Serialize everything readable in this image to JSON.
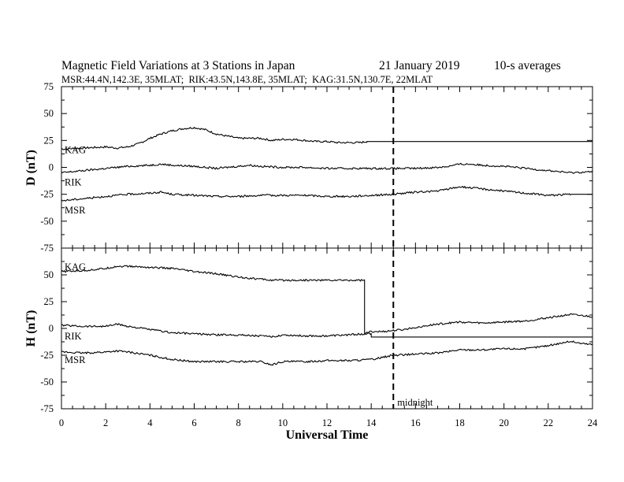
{
  "header": {
    "title": "Magnetic Field Variations at 3 Stations in Japan",
    "date": "21 January 2019",
    "averaging": "10-s averages",
    "stations": "MSR:44.4N,142.3E, 35MLAT;  RIK:43.5N,143.8E, 35MLAT;  KAG:31.5N,130.7E, 22MLAT"
  },
  "chart_data": [
    {
      "type": "line",
      "panel": "D",
      "ylabel": "D (nT)",
      "xlabel": "",
      "xlim": [
        0,
        24
      ],
      "ylim": [
        -75,
        75
      ],
      "xticks": [
        0,
        2,
        4,
        6,
        8,
        10,
        12,
        14,
        16,
        18,
        20,
        22,
        24
      ],
      "yticks": [
        -75,
        -50,
        -25,
        0,
        25,
        50,
        75
      ],
      "series": [
        {
          "name": "KAG",
          "x": [
            0,
            1,
            2,
            2.5,
            3,
            3.5,
            4,
            4.5,
            5,
            5.5,
            6,
            6.5,
            7,
            7.5,
            8,
            8.5,
            9,
            9.5,
            10,
            10.5,
            11,
            11.5,
            12,
            12.5,
            13,
            13.5,
            13.8,
            13.8,
            24
          ],
          "y": [
            17,
            18,
            19,
            18,
            19,
            22,
            27,
            31,
            34,
            36,
            37,
            35,
            31,
            29,
            27,
            27,
            27,
            25,
            26,
            26,
            25,
            24,
            24,
            23,
            23,
            23,
            24,
            24,
            24
          ]
        },
        {
          "name": "RIK",
          "x": [
            0,
            1,
            2,
            3,
            4,
            4.5,
            5,
            6,
            7,
            8,
            8.5,
            9,
            10,
            11,
            12,
            13,
            14,
            15,
            16,
            17,
            17.5,
            18,
            18.5,
            19,
            20,
            21,
            22,
            23,
            24
          ],
          "y": [
            -5,
            -3,
            -1,
            1,
            2,
            3,
            2,
            1,
            -1,
            1,
            2,
            1,
            0,
            0,
            -1,
            -1,
            -1,
            -1,
            -1,
            0,
            1,
            3,
            3,
            2,
            1,
            -1,
            -3,
            -5,
            -4
          ]
        },
        {
          "name": "MSR",
          "x": [
            0,
            1,
            2,
            3,
            4,
            4.5,
            5,
            6,
            7,
            8,
            9,
            10,
            11,
            12,
            13,
            14,
            15,
            16,
            17,
            17.5,
            18,
            18.5,
            19,
            20,
            21,
            22,
            23,
            24
          ],
          "y": [
            -31,
            -29,
            -27,
            -25,
            -24,
            -23,
            -25,
            -26,
            -27,
            -27,
            -26,
            -26,
            -26,
            -27,
            -27,
            -26,
            -25,
            -23,
            -22,
            -20,
            -18,
            -19,
            -20,
            -22,
            -24,
            -26,
            -25,
            -25
          ]
        }
      ],
      "annotations": []
    },
    {
      "type": "line",
      "panel": "H",
      "ylabel": "H (nT)",
      "xlabel": "Universal Time",
      "xlim": [
        0,
        24
      ],
      "ylim": [
        -75,
        75
      ],
      "xticks": [
        0,
        2,
        4,
        6,
        8,
        10,
        12,
        14,
        16,
        18,
        20,
        22,
        24
      ],
      "yticks": [
        -75,
        -50,
        -25,
        0,
        25,
        50,
        75
      ],
      "series": [
        {
          "name": "KAG",
          "x": [
            0,
            1,
            2,
            2.5,
            3,
            4,
            5,
            6,
            7,
            8,
            9,
            9.5,
            10,
            11,
            12,
            13,
            13.7,
            13.7,
            14,
            14,
            24
          ],
          "y": [
            53,
            54,
            56,
            58,
            58,
            57,
            56,
            53,
            51,
            48,
            46,
            45,
            45,
            45,
            45,
            45,
            45,
            -5,
            -5,
            -8,
            -8
          ]
        },
        {
          "name": "RIK",
          "x": [
            0,
            1,
            2,
            2.5,
            3,
            4,
            5,
            6,
            7,
            8,
            9,
            9.5,
            10,
            11,
            12,
            13,
            13.7,
            14,
            14.5,
            15,
            15.5,
            16,
            17,
            18,
            19,
            20,
            21,
            22,
            23,
            23.5,
            24
          ],
          "y": [
            3,
            2,
            2,
            4,
            2,
            -1,
            -4,
            -5,
            -6,
            -6,
            -7,
            -8,
            -6,
            -7,
            -7,
            -6,
            -5,
            -3,
            -3,
            -2,
            -1,
            1,
            4,
            6,
            5,
            6,
            7,
            10,
            13,
            12,
            11
          ]
        },
        {
          "name": "MSR",
          "x": [
            0,
            1,
            2,
            2.5,
            3,
            4,
            5,
            6,
            7,
            8,
            9,
            9.5,
            10,
            11,
            12,
            13,
            14,
            14.5,
            15,
            16,
            17,
            18,
            19,
            20,
            21,
            22,
            23,
            23.5,
            24
          ],
          "y": [
            -22,
            -23,
            -22,
            -21,
            -22,
            -25,
            -29,
            -31,
            -31,
            -31,
            -31,
            -34,
            -31,
            -31,
            -30,
            -30,
            -29,
            -27,
            -25,
            -24,
            -23,
            -20,
            -20,
            -19,
            -19,
            -16,
            -12,
            -14,
            -15
          ]
        }
      ],
      "annotations": [
        {
          "label": "midnight",
          "x": 15
        }
      ]
    }
  ]
}
